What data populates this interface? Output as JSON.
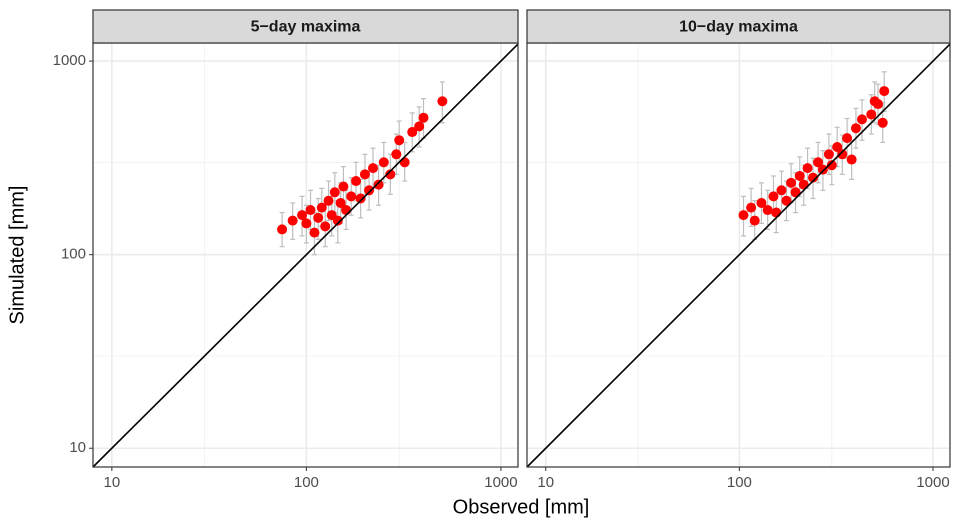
{
  "chart_data": {
    "type": "scatter",
    "x_label": "Observed [mm]",
    "y_label": "Simulated [mm]",
    "log_x": true,
    "log_y": true,
    "grid": true,
    "identity_line": true,
    "color": "#ff0000",
    "error_color": "#bebebe",
    "xlim": [
      8,
      1224
    ],
    "ylim": [
      8,
      1240
    ],
    "xticks": [
      10,
      100,
      1000
    ],
    "yticks": [
      10,
      100,
      1000
    ],
    "minor_ticks": [
      30,
      300
    ],
    "panels": [
      {
        "title": "5−day maxima",
        "x": [
          75,
          85,
          95,
          100,
          105,
          110,
          115,
          120,
          125,
          130,
          135,
          140,
          145,
          150,
          155,
          160,
          170,
          180,
          190,
          200,
          210,
          220,
          235,
          250,
          270,
          290,
          300,
          320,
          350,
          380,
          400,
          500
        ],
        "values": [
          135,
          150,
          160,
          145,
          170,
          130,
          155,
          175,
          140,
          190,
          160,
          210,
          150,
          185,
          225,
          170,
          200,
          240,
          195,
          260,
          215,
          280,
          230,
          300,
          260,
          330,
          390,
          300,
          430,
          460,
          510,
          620
        ],
        "lower": [
          110,
          120,
          125,
          115,
          135,
          100,
          120,
          140,
          110,
          150,
          125,
          165,
          115,
          145,
          175,
          135,
          160,
          190,
          155,
          205,
          170,
          220,
          180,
          235,
          205,
          260,
          300,
          240,
          340,
          360,
          400,
          480
        ],
        "upper": [
          165,
          185,
          200,
          180,
          215,
          165,
          195,
          220,
          180,
          240,
          200,
          265,
          190,
          235,
          285,
          215,
          250,
          300,
          245,
          330,
          270,
          355,
          290,
          380,
          330,
          420,
          490,
          380,
          540,
          580,
          640,
          780
        ]
      },
      {
        "title": "10−day maxima",
        "x": [
          105,
          115,
          120,
          130,
          140,
          150,
          155,
          165,
          175,
          185,
          195,
          205,
          215,
          225,
          240,
          255,
          270,
          290,
          300,
          320,
          340,
          360,
          380,
          400,
          430,
          480,
          500,
          520,
          550,
          560
        ],
        "values": [
          160,
          175,
          150,
          185,
          170,
          200,
          165,
          215,
          190,
          235,
          210,
          255,
          230,
          280,
          250,
          300,
          275,
          330,
          290,
          360,
          330,
          400,
          310,
          450,
          500,
          530,
          620,
          600,
          480,
          700
        ],
        "lower": [
          125,
          140,
          120,
          145,
          135,
          160,
          130,
          170,
          150,
          185,
          165,
          200,
          180,
          220,
          195,
          235,
          215,
          260,
          230,
          285,
          260,
          315,
          245,
          355,
          390,
          420,
          480,
          470,
          380,
          550
        ],
        "upper": [
          200,
          220,
          190,
          235,
          215,
          255,
          210,
          270,
          240,
          295,
          265,
          320,
          290,
          355,
          315,
          380,
          345,
          420,
          365,
          455,
          415,
          505,
          390,
          570,
          630,
          670,
          780,
          760,
          610,
          880
        ]
      }
    ]
  }
}
